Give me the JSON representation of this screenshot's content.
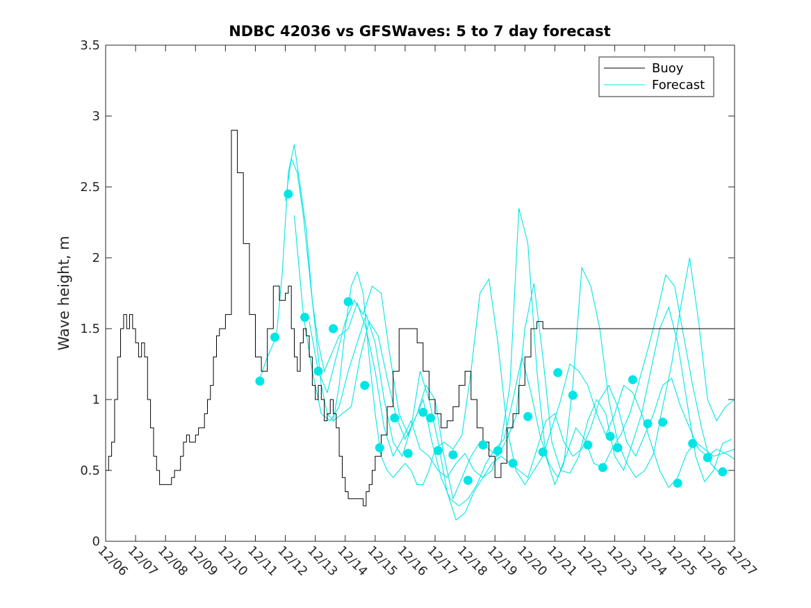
{
  "chart_data": {
    "type": "line",
    "title": "NDBC 42036 vs GFSWaves: 5 to 7 day forecast",
    "xlabel": "",
    "ylabel": "Wave height, m",
    "ylim": [
      0,
      3.5
    ],
    "y_ticks": [
      "0",
      "0.5",
      "1",
      "1.5",
      "2",
      "2.5",
      "3",
      "3.5"
    ],
    "y_tick_values": [
      0,
      0.5,
      1,
      1.5,
      2,
      2.5,
      3,
      3.5
    ],
    "xlim": [
      0,
      21
    ],
    "x_ticks": [
      "12/06",
      "12/07",
      "12/08",
      "12/09",
      "12/10",
      "12/11",
      "12/12",
      "12/13",
      "12/14",
      "12/15",
      "12/16",
      "12/17",
      "12/18",
      "12/19",
      "12/20",
      "12/21",
      "12/22",
      "12/23",
      "12/24",
      "12/25",
      "12/26",
      "12/27"
    ],
    "legend": [
      {
        "name": "Buoy",
        "color": "#000000"
      },
      {
        "name": "Forecast",
        "color": "#00e5e5"
      }
    ],
    "legend_position": "top-right",
    "buoy_color": "#000000",
    "forecast_color": "#00e5e5",
    "series": [
      {
        "name": "Buoy",
        "x": [
          0,
          0.1,
          0.2,
          0.3,
          0.4,
          0.5,
          0.6,
          0.7,
          0.8,
          0.9,
          1.0,
          1.1,
          1.2,
          1.3,
          1.4,
          1.5,
          1.6,
          1.7,
          1.8,
          1.9,
          2.0,
          2.1,
          2.2,
          2.3,
          2.4,
          2.5,
          2.6,
          2.7,
          2.8,
          2.9,
          3.0,
          3.1,
          3.2,
          3.3,
          3.4,
          3.5,
          3.6,
          3.7,
          3.8,
          3.9,
          4.0,
          4.2,
          4.4,
          4.6,
          4.8,
          5.0,
          5.2,
          5.4,
          5.6,
          5.8,
          6.0,
          6.1,
          6.2,
          6.3,
          6.4,
          6.5,
          6.6,
          6.7,
          6.8,
          6.9,
          7.0,
          7.1,
          7.2,
          7.3,
          7.4,
          7.5,
          7.6,
          7.7,
          7.8,
          7.9,
          8.0,
          8.1,
          8.2,
          8.3,
          8.4,
          8.5,
          8.6,
          8.7,
          8.8,
          8.9,
          9.0,
          9.2,
          9.4,
          9.6,
          9.8,
          10.0,
          10.2,
          10.4,
          10.6,
          10.8,
          11.0,
          11.2,
          11.4,
          11.6,
          11.8,
          12.0,
          12.2,
          12.4,
          12.6,
          12.8,
          13.0,
          13.2,
          13.4,
          13.6,
          13.8,
          14.0,
          14.2,
          14.4,
          14.6,
          14.8,
          15.0,
          15.2,
          15.4,
          15.6,
          15.8,
          16.0,
          16.2,
          16.4,
          16.6,
          16.8,
          17.0,
          17.2,
          17.4,
          17.6,
          17.8,
          18.0,
          18.2,
          18.4,
          18.6,
          18.8,
          19.0,
          19.2,
          19.4,
          19.6,
          19.8,
          20.0,
          20.2,
          20.4,
          20.6,
          20.8,
          21.0
        ],
        "y": [
          0.5,
          0.6,
          0.7,
          1.0,
          1.3,
          1.5,
          1.6,
          1.5,
          1.6,
          1.5,
          1.4,
          1.3,
          1.4,
          1.3,
          1.0,
          0.8,
          0.6,
          0.5,
          0.4,
          0.4,
          0.4,
          0.4,
          0.45,
          0.5,
          0.5,
          0.6,
          0.7,
          0.75,
          0.7,
          0.7,
          0.75,
          0.8,
          0.8,
          0.9,
          1.0,
          1.1,
          1.3,
          1.45,
          1.5,
          1.5,
          1.6,
          2.9,
          2.6,
          2.1,
          1.6,
          1.3,
          1.2,
          1.5,
          1.8,
          1.7,
          1.75,
          1.8,
          1.5,
          1.3,
          1.2,
          1.4,
          1.5,
          1.45,
          1.3,
          1.1,
          1.0,
          1.1,
          1.0,
          0.85,
          0.9,
          1.0,
          0.9,
          0.8,
          0.6,
          0.45,
          0.35,
          0.3,
          0.3,
          0.3,
          0.3,
          0.3,
          0.25,
          0.35,
          0.4,
          0.5,
          0.6,
          0.75,
          0.95,
          1.2,
          1.5,
          1.5,
          1.5,
          1.4,
          1.2,
          1.0,
          0.9,
          0.8,
          0.85,
          0.95,
          1.1,
          1.2,
          1.0,
          0.8,
          0.7,
          0.6,
          0.45,
          0.55,
          0.8,
          0.9,
          1.1,
          1.3,
          1.5,
          1.55,
          1.5,
          1.5,
          1.5,
          1.5,
          1.5,
          1.5,
          1.5,
          1.5,
          1.5,
          1.5,
          1.5,
          1.5,
          1.5,
          1.5,
          1.5,
          1.5,
          1.5,
          1.5,
          1.5,
          1.5,
          1.5,
          1.5,
          1.5,
          1.5,
          1.5,
          1.5,
          1.5,
          1.5,
          1.5,
          1.5,
          1.5,
          1.5,
          1.5
        ]
      }
    ],
    "forecast_lines": [
      {
        "x": [
          5.1,
          5.4,
          5.7,
          5.9,
          6.1,
          6.3,
          6.5,
          6.7,
          6.9,
          7.1,
          7.3,
          7.5,
          7.8,
          8.1,
          8.4,
          8.7,
          9.0,
          9.3,
          9.6,
          9.9,
          10.2,
          10.5,
          10.8,
          11.1,
          11.4,
          11.7,
          12.0,
          12.3,
          12.6,
          12.9,
          13.2,
          13.5,
          13.8,
          14.1,
          14.4,
          14.7,
          15.0,
          15.3,
          15.6,
          15.9,
          16.2,
          16.5,
          16.8,
          17.1,
          17.4,
          17.7,
          18.0,
          18.3,
          18.6,
          18.9,
          19.2,
          19.5,
          19.8,
          20.1,
          20.4,
          20.7,
          21.0
        ],
        "y": [
          1.12,
          1.3,
          1.44,
          1.9,
          2.6,
          2.8,
          2.5,
          2.2,
          1.7,
          1.4,
          1.2,
          1.3,
          1.45,
          1.5,
          1.68,
          1.5,
          1.2,
          0.8,
          0.6,
          0.72,
          0.85,
          0.65,
          0.6,
          0.5,
          0.45,
          0.55,
          0.62,
          0.5,
          0.45,
          0.55,
          0.6,
          0.55,
          0.5,
          0.45,
          0.65,
          0.85,
          0.9,
          0.7,
          0.6,
          0.65,
          0.8,
          1.0,
          1.1,
          0.95,
          0.7,
          0.6,
          0.75,
          0.9,
          1.1,
          1.15,
          0.95,
          0.8,
          0.65,
          0.6,
          0.65,
          0.62,
          0.58
        ]
      },
      {
        "x": [
          6.0,
          6.2,
          6.4,
          6.6,
          6.8,
          7.0,
          7.2,
          7.4,
          7.6,
          7.8,
          8.0,
          8.2,
          8.4,
          8.6,
          8.8,
          9.0,
          9.2,
          9.4,
          9.6,
          9.8,
          10.0,
          10.2,
          10.4,
          10.6,
          10.8,
          11.0,
          11.3,
          11.6,
          11.9,
          12.2,
          12.5,
          12.8,
          13.1,
          13.4,
          13.7,
          14.0,
          14.3,
          14.6,
          14.9,
          15.2,
          15.5,
          15.8,
          16.1,
          16.4,
          16.7,
          17.0,
          17.3,
          17.6,
          17.9,
          18.2,
          18.5,
          18.8,
          19.1,
          19.4,
          19.7,
          20.0,
          20.3,
          20.6,
          21.0
        ],
        "y": [
          2.4,
          2.7,
          2.6,
          2.3,
          1.9,
          1.5,
          1.1,
          0.9,
          0.85,
          1.1,
          1.5,
          1.8,
          1.9,
          1.75,
          1.3,
          0.9,
          0.6,
          0.5,
          0.45,
          0.5,
          0.55,
          0.5,
          0.4,
          0.4,
          0.5,
          0.65,
          0.7,
          0.65,
          0.75,
          1.2,
          1.75,
          1.85,
          1.4,
          0.8,
          0.5,
          0.4,
          0.5,
          0.6,
          0.8,
          1.0,
          1.25,
          1.2,
          1.1,
          0.9,
          0.75,
          0.9,
          1.1,
          1.05,
          0.9,
          0.7,
          0.5,
          0.38,
          0.45,
          0.62,
          0.7,
          0.65,
          0.6,
          0.62,
          0.65
        ]
      },
      {
        "x": [
          6.3,
          6.6,
          6.9,
          7.2,
          7.5,
          7.8,
          8.1,
          8.4,
          8.7,
          9.0,
          9.3,
          9.6,
          9.9,
          10.2,
          10.5,
          10.8,
          11.1,
          11.4,
          11.7,
          12.0,
          12.3,
          12.6,
          12.9,
          13.2,
          13.5,
          13.8,
          14.1,
          14.4,
          14.7,
          15.0,
          15.3,
          15.6,
          15.9,
          16.2,
          16.5,
          16.8,
          17.1,
          17.4,
          17.7,
          18.0,
          18.3,
          18.6,
          18.9,
          19.2,
          19.5,
          19.8,
          20.1,
          20.4,
          20.7,
          21.0
        ],
        "y": [
          2.3,
          1.6,
          1.2,
          0.9,
          0.85,
          0.95,
          1.2,
          1.4,
          1.6,
          1.4,
          1.0,
          0.7,
          0.6,
          0.8,
          1.2,
          1.0,
          0.7,
          0.35,
          0.15,
          0.2,
          0.35,
          0.45,
          0.5,
          0.7,
          1.1,
          2.35,
          2.1,
          1.2,
          0.6,
          0.4,
          0.55,
          1.1,
          1.93,
          1.8,
          1.5,
          1.0,
          0.7,
          0.55,
          0.45,
          0.5,
          0.62,
          0.95,
          1.25,
          1.65,
          2.0,
          1.55,
          1.0,
          0.85,
          0.95,
          1.0
        ]
      },
      {
        "x": [
          6.8,
          7.1,
          7.4,
          7.7,
          8.0,
          8.3,
          8.6,
          8.9,
          9.2,
          9.5,
          9.8,
          10.1,
          10.4,
          10.7,
          11.0,
          11.3,
          11.6,
          11.9,
          12.2,
          12.5,
          12.8,
          13.1,
          13.4,
          13.7,
          14.0,
          14.3,
          14.6,
          14.9,
          15.2,
          15.5,
          15.8,
          16.1,
          16.4,
          16.7,
          17.0,
          17.3,
          17.6,
          17.9,
          18.2,
          18.5,
          18.8,
          19.1,
          19.4,
          19.7,
          20.0,
          20.3,
          20.6,
          20.9
        ],
        "y": [
          1.55,
          1.2,
          1.05,
          1.3,
          1.55,
          1.7,
          1.6,
          1.8,
          1.75,
          1.3,
          0.9,
          0.75,
          0.9,
          1.1,
          1.0,
          0.6,
          0.3,
          0.45,
          0.6,
          0.7,
          0.65,
          0.6,
          0.72,
          0.88,
          1.5,
          1.82,
          1.3,
          0.7,
          0.5,
          0.48,
          0.6,
          0.85,
          1.0,
          0.9,
          0.6,
          0.5,
          0.7,
          0.9,
          1.2,
          1.5,
          1.65,
          1.4,
          1.0,
          0.6,
          0.42,
          0.5,
          0.69,
          0.72
        ]
      },
      {
        "x": [
          7.6,
          7.9,
          8.2,
          8.5,
          8.8,
          9.1,
          9.4,
          9.7,
          10.0,
          10.3,
          10.6,
          10.9,
          11.2,
          11.5,
          11.8,
          12.1,
          12.4,
          12.7,
          13.0,
          13.3,
          13.6,
          13.9,
          14.2,
          14.5,
          14.8,
          15.1,
          15.4,
          15.7,
          16.0,
          16.3,
          16.6,
          16.9,
          17.2,
          17.5,
          17.8,
          18.1,
          18.4,
          18.7,
          19.0,
          19.3,
          19.6,
          19.9,
          20.2,
          20.5,
          20.8
        ],
        "y": [
          0.85,
          0.9,
          0.95,
          1.3,
          1.55,
          1.45,
          1.15,
          0.88,
          0.72,
          0.85,
          1.0,
          0.7,
          0.45,
          0.3,
          0.25,
          0.3,
          0.4,
          0.55,
          0.65,
          0.72,
          1.0,
          1.3,
          1.05,
          0.75,
          0.55,
          0.45,
          0.62,
          0.8,
          0.72,
          0.55,
          0.52,
          0.65,
          0.75,
          0.9,
          1.12,
          1.35,
          1.6,
          1.88,
          1.8,
          1.45,
          1.1,
          0.8,
          0.55,
          0.48,
          0.5
        ]
      }
    ],
    "forecast_markers": {
      "x": [
        5.15,
        5.65,
        6.1,
        6.65,
        7.1,
        7.6,
        8.1,
        8.65,
        9.15,
        9.65,
        10.1,
        10.6,
        10.85,
        11.1,
        11.6,
        12.1,
        12.6,
        13.1,
        13.6,
        14.1,
        14.6,
        15.1,
        15.6,
        16.1,
        16.6,
        16.85,
        17.1,
        17.6,
        18.1,
        18.6,
        19.1,
        19.6,
        20.1,
        20.6
      ],
      "y": [
        1.13,
        1.44,
        2.45,
        1.58,
        1.2,
        1.5,
        1.69,
        1.1,
        0.66,
        0.87,
        0.62,
        0.91,
        0.87,
        0.64,
        0.61,
        0.43,
        0.68,
        0.64,
        0.55,
        0.88,
        0.63,
        1.19,
        1.03,
        0.68,
        0.52,
        0.74,
        0.66,
        1.14,
        0.83,
        0.84,
        0.41,
        0.69,
        0.59,
        0.49
      ]
    }
  }
}
